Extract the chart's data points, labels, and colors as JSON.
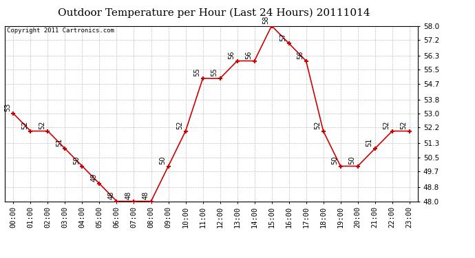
{
  "title": "Outdoor Temperature per Hour (Last 24 Hours) 20111014",
  "copyright_text": "Copyright 2011 Cartronics.com",
  "hours": [
    "00:00",
    "01:00",
    "02:00",
    "03:00",
    "04:00",
    "05:00",
    "06:00",
    "07:00",
    "08:00",
    "09:00",
    "10:00",
    "11:00",
    "12:00",
    "13:00",
    "14:00",
    "15:00",
    "16:00",
    "17:00",
    "18:00",
    "19:00",
    "20:00",
    "21:00",
    "22:00",
    "23:00"
  ],
  "temps": [
    53,
    52,
    52,
    51,
    50,
    49,
    48,
    48,
    48,
    50,
    52,
    55,
    55,
    56,
    56,
    58,
    57,
    56,
    52,
    50,
    50,
    51,
    52,
    52
  ],
  "ylim_min": 48.0,
  "ylim_max": 58.0,
  "yticks": [
    48.0,
    48.8,
    49.7,
    50.5,
    51.3,
    52.2,
    53.0,
    53.8,
    54.7,
    55.5,
    56.3,
    57.2,
    58.0
  ],
  "line_color": "#cc0000",
  "marker_color": "#cc0000",
  "bg_color": "#ffffff",
  "grid_color": "#c0c0c0",
  "title_fontsize": 11,
  "label_fontsize": 7.5,
  "annotation_fontsize": 7.0,
  "copyright_fontsize": 6.5
}
